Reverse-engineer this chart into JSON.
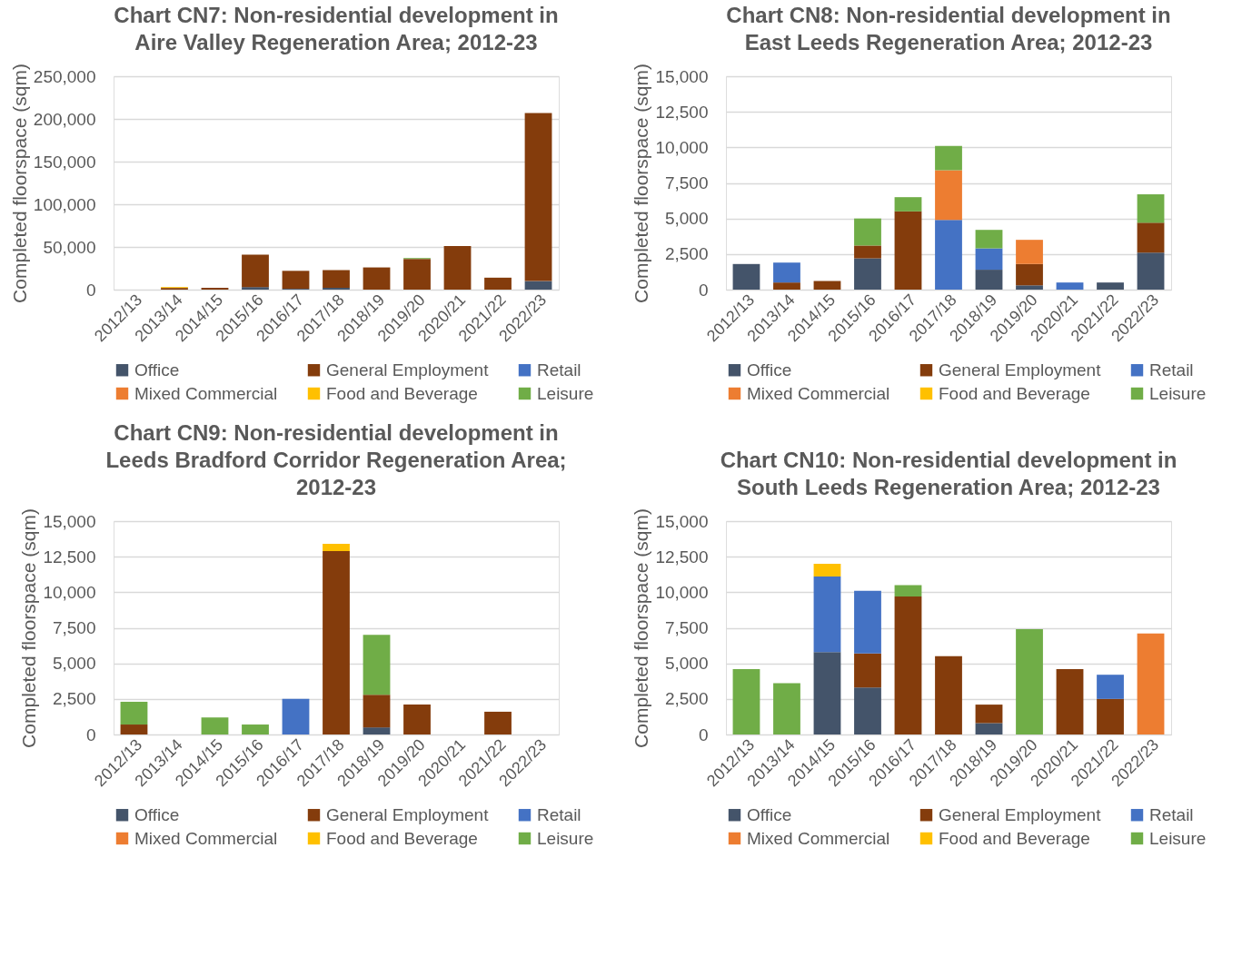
{
  "chart_data": [
    {
      "type": "bar",
      "stacked": true,
      "title": "Chart CN7: Non-residential development in Aire Valley Regeneration Area; 2012-23",
      "ylabel": "Completed floorspace (sqm)",
      "categories": [
        "2012/13",
        "2013/14",
        "2014/15",
        "2015/16",
        "2016/17",
        "2017/18",
        "2018/19",
        "2019/20",
        "2020/21",
        "2021/22",
        "2022/23"
      ],
      "ylim": [
        0,
        250000
      ],
      "yticks": [
        {
          "value": 0,
          "label": "0"
        },
        {
          "value": 50000,
          "label": "50,000"
        },
        {
          "value": 100000,
          "label": "100,000"
        },
        {
          "value": 150000,
          "label": "150,000"
        },
        {
          "value": 200000,
          "label": "200,000"
        },
        {
          "value": 250000,
          "label": "250,000"
        }
      ],
      "grid": "y",
      "legend": "bottom",
      "series": [
        {
          "name": "Office",
          "color": "#44546a",
          "values": [
            null,
            null,
            null,
            3000,
            1000,
            2000,
            null,
            null,
            null,
            null,
            10000
          ]
        },
        {
          "name": "General Employment",
          "color": "#843c0c",
          "values": [
            null,
            2000,
            2000,
            38000,
            21000,
            21000,
            26000,
            36000,
            51000,
            14000,
            197000
          ]
        },
        {
          "name": "Retail",
          "color": "#4472c4",
          "values": [
            null,
            null,
            null,
            null,
            null,
            null,
            null,
            null,
            null,
            null,
            null
          ]
        },
        {
          "name": "Mixed Commercial",
          "color": "#ed7d31",
          "values": [
            null,
            null,
            null,
            null,
            null,
            null,
            null,
            null,
            null,
            null,
            null
          ]
        },
        {
          "name": "Food and Beverage",
          "color": "#ffc000",
          "values": [
            null,
            1000,
            null,
            null,
            null,
            null,
            null,
            null,
            null,
            null,
            null
          ]
        },
        {
          "name": "Leisure",
          "color": "#70ad47",
          "values": [
            null,
            null,
            null,
            null,
            null,
            null,
            null,
            1000,
            null,
            null,
            null
          ]
        }
      ]
    },
    {
      "type": "bar",
      "stacked": true,
      "title": "Chart CN8: Non-residential development in East Leeds Regeneration Area; 2012-23",
      "ylabel": "Completed floorspace (sqm)",
      "categories": [
        "2012/13",
        "2013/14",
        "2014/15",
        "2015/16",
        "2016/17",
        "2017/18",
        "2018/19",
        "2019/20",
        "2020/21",
        "2021/22",
        "2022/23"
      ],
      "ylim": [
        0,
        15000
      ],
      "yticks": [
        {
          "value": 0,
          "label": "0"
        },
        {
          "value": 2500,
          "label": "2,500"
        },
        {
          "value": 5000,
          "label": "5,000"
        },
        {
          "value": 7500,
          "label": "7,500"
        },
        {
          "value": 10000,
          "label": "10,000"
        },
        {
          "value": 12500,
          "label": "12,500"
        },
        {
          "value": 15000,
          "label": "15,000"
        }
      ],
      "grid": "y",
      "legend": "bottom",
      "series": [
        {
          "name": "Office",
          "color": "#44546a",
          "values": [
            1800,
            null,
            null,
            2200,
            null,
            null,
            1400,
            300,
            null,
            500,
            2600
          ]
        },
        {
          "name": "General Employment",
          "color": "#843c0c",
          "values": [
            null,
            500,
            600,
            900,
            5500,
            null,
            null,
            1500,
            null,
            null,
            2100
          ]
        },
        {
          "name": "Retail",
          "color": "#4472c4",
          "values": [
            null,
            1400,
            null,
            null,
            null,
            4900,
            1500,
            null,
            500,
            null,
            null
          ]
        },
        {
          "name": "Mixed Commercial",
          "color": "#ed7d31",
          "values": [
            null,
            null,
            null,
            null,
            null,
            3500,
            null,
            1700,
            null,
            null,
            null
          ]
        },
        {
          "name": "Food and Beverage",
          "color": "#ffc000",
          "values": [
            null,
            null,
            null,
            null,
            null,
            null,
            null,
            null,
            null,
            null,
            null
          ]
        },
        {
          "name": "Leisure",
          "color": "#70ad47",
          "values": [
            null,
            null,
            null,
            1900,
            1000,
            1700,
            1300,
            null,
            null,
            null,
            2000
          ]
        }
      ]
    },
    {
      "type": "bar",
      "stacked": true,
      "title": "Chart CN9: Non-residential development in Leeds Bradford Corridor Regeneration Area; 2012-23",
      "ylabel": "Completed floorspace (sqm)",
      "categories": [
        "2012/13",
        "2013/14",
        "2014/15",
        "2015/16",
        "2016/17",
        "2017/18",
        "2018/19",
        "2019/20",
        "2020/21",
        "2021/22",
        "2022/23"
      ],
      "ylim": [
        0,
        15000
      ],
      "yticks": [
        {
          "value": 0,
          "label": "0"
        },
        {
          "value": 2500,
          "label": "2,500"
        },
        {
          "value": 5000,
          "label": "5,000"
        },
        {
          "value": 7500,
          "label": "7,500"
        },
        {
          "value": 10000,
          "label": "10,000"
        },
        {
          "value": 12500,
          "label": "12,500"
        },
        {
          "value": 15000,
          "label": "15,000"
        }
      ],
      "grid": "y",
      "legend": "bottom",
      "series": [
        {
          "name": "Office",
          "color": "#44546a",
          "values": [
            null,
            null,
            null,
            null,
            null,
            null,
            500,
            null,
            null,
            null,
            null
          ]
        },
        {
          "name": "General Employment",
          "color": "#843c0c",
          "values": [
            700,
            null,
            null,
            null,
            null,
            12900,
            2300,
            2100,
            null,
            1600,
            null
          ]
        },
        {
          "name": "Retail",
          "color": "#4472c4",
          "values": [
            null,
            null,
            null,
            null,
            2500,
            null,
            null,
            null,
            null,
            null,
            null
          ]
        },
        {
          "name": "Mixed Commercial",
          "color": "#ed7d31",
          "values": [
            null,
            null,
            null,
            null,
            null,
            null,
            null,
            null,
            null,
            null,
            null
          ]
        },
        {
          "name": "Food and Beverage",
          "color": "#ffc000",
          "values": [
            null,
            null,
            null,
            null,
            null,
            500,
            null,
            null,
            null,
            null,
            null
          ]
        },
        {
          "name": "Leisure",
          "color": "#70ad47",
          "values": [
            1600,
            null,
            1200,
            700,
            null,
            null,
            4200,
            null,
            null,
            null,
            null
          ]
        }
      ]
    },
    {
      "type": "bar",
      "stacked": true,
      "title": "Chart CN10: Non-residential development in South Leeds Regeneration Area; 2012-23",
      "ylabel": "Completed floorspace (sqm)",
      "categories": [
        "2012/13",
        "2013/14",
        "2014/15",
        "2015/16",
        "2016/17",
        "2017/18",
        "2018/19",
        "2019/20",
        "2020/21",
        "2021/22",
        "2022/23"
      ],
      "ylim": [
        0,
        15000
      ],
      "yticks": [
        {
          "value": 0,
          "label": "0"
        },
        {
          "value": 2500,
          "label": "2,500"
        },
        {
          "value": 5000,
          "label": "5,000"
        },
        {
          "value": 7500,
          "label": "7,500"
        },
        {
          "value": 10000,
          "label": "10,000"
        },
        {
          "value": 12500,
          "label": "12,500"
        },
        {
          "value": 15000,
          "label": "15,000"
        }
      ],
      "grid": "y",
      "legend": "bottom",
      "series": [
        {
          "name": "Office",
          "color": "#44546a",
          "values": [
            null,
            null,
            5800,
            3300,
            null,
            null,
            800,
            null,
            null,
            null,
            null
          ]
        },
        {
          "name": "General Employment",
          "color": "#843c0c",
          "values": [
            null,
            null,
            null,
            2400,
            9700,
            5500,
            1300,
            null,
            4600,
            2500,
            null
          ]
        },
        {
          "name": "Retail",
          "color": "#4472c4",
          "values": [
            null,
            null,
            5300,
            4400,
            null,
            null,
            null,
            null,
            null,
            1700,
            null
          ]
        },
        {
          "name": "Mixed Commercial",
          "color": "#ed7d31",
          "values": [
            null,
            null,
            null,
            null,
            null,
            null,
            null,
            null,
            null,
            null,
            7100
          ]
        },
        {
          "name": "Food and Beverage",
          "color": "#ffc000",
          "values": [
            null,
            null,
            900,
            null,
            null,
            null,
            null,
            null,
            null,
            null,
            null
          ]
        },
        {
          "name": "Leisure",
          "color": "#70ad47",
          "values": [
            4600,
            3600,
            null,
            null,
            800,
            null,
            null,
            7400,
            null,
            null,
            null
          ]
        }
      ]
    }
  ]
}
